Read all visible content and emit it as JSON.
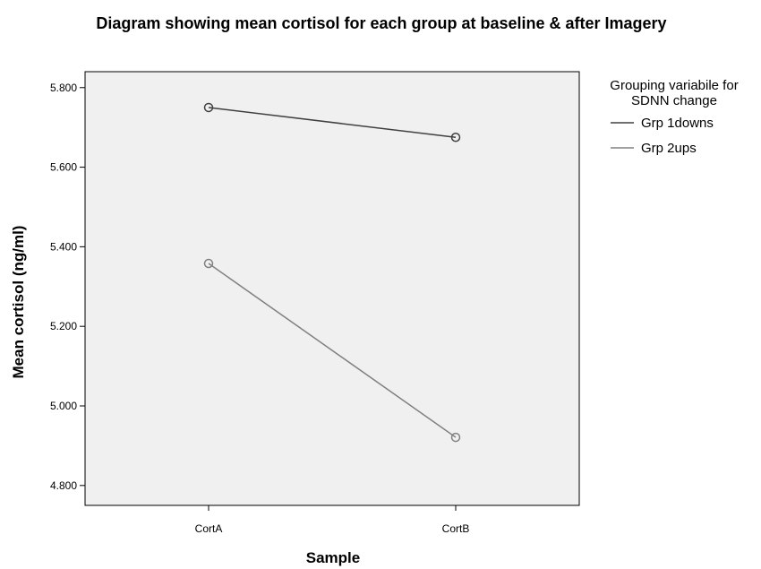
{
  "chart_data": {
    "type": "line",
    "title": "Diagram showing mean cortisol for each group at baseline & after Imagery",
    "xlabel": "Sample",
    "ylabel": "Mean cortisol (ng/ml)",
    "categories": [
      "CortA",
      "CortB"
    ],
    "y_ticks": [
      "4.800",
      "5.000",
      "5.200",
      "5.400",
      "5.600",
      "5.800"
    ],
    "ylim": [
      4.75,
      5.84
    ],
    "grid": false,
    "legend_position": "right",
    "legend_title_lines": [
      "Grouping variabile for",
      "SDNN change"
    ],
    "series": [
      {
        "name": "Grp 1downs",
        "values": [
          5.75,
          5.675
        ],
        "color": "#404040"
      },
      {
        "name": "Grp 2ups",
        "values": [
          5.358,
          4.921
        ],
        "color": "#808080"
      }
    ],
    "plot_background": "#f0f0f0"
  }
}
